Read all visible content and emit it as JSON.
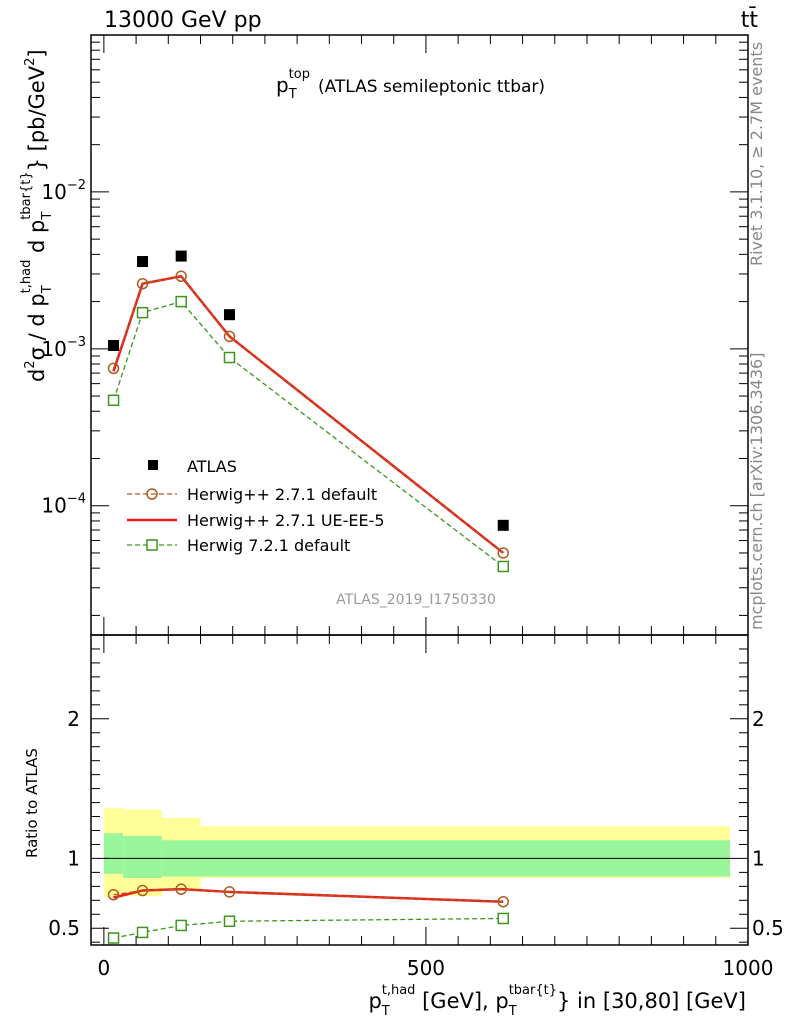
{
  "header": {
    "energy_label": "13000 GeV pp",
    "process_label": "tt̄"
  },
  "side_labels": {
    "rivet": "Rivet 3.1.10, ≥ 2.7M events",
    "mcplots": "mcplots.cern.ch [arXiv:1306.3436]"
  },
  "chart_data": [
    {
      "type": "scatter",
      "title": {
        "main": "p",
        "sub": "T",
        "sup": "top",
        "rest": "(ATLAS semileptonic ttbar)"
      },
      "ylabel": {
        "d2": "d",
        "two": "2",
        "sigma": "σ / d p",
        "T1": "T",
        "thad": "t,had",
        "dp": " d p",
        "T2": "T",
        "tbar": "tbar{t}",
        "brace_unit": "} [pb/GeV",
        "unit_sup": "2",
        "close": "]"
      },
      "yscale": "log",
      "ylim": [
        1.5e-05,
        0.1
      ],
      "xlim": [
        -20,
        1000
      ],
      "yticks": [
        {
          "value": 0.01,
          "base": "10",
          "exp": "−2"
        },
        {
          "value": 0.001,
          "base": "10",
          "exp": "−3"
        },
        {
          "value": 0.0001,
          "base": "10",
          "exp": "−4"
        }
      ],
      "watermark": "ATLAS_2019_I1750330",
      "legend_position": "lower-left",
      "series": [
        {
          "name": "ATLAS",
          "marker": "filled-square",
          "color": "#000000",
          "x": [
            15,
            60,
            120,
            195,
            620
          ],
          "y": [
            0.00105,
            0.0036,
            0.0039,
            0.00165,
            7.5e-05
          ]
        },
        {
          "name": "Herwig++ 2.7.1 default",
          "marker": "open-circle",
          "line": "dashed",
          "color": "#b05a1e",
          "x": [
            15,
            60,
            120,
            195,
            620
          ],
          "y": [
            0.00075,
            0.0026,
            0.0029,
            0.0012,
            5e-05
          ]
        },
        {
          "name": "Herwig++ 2.7.1 UE-EE-5",
          "marker": "none",
          "line": "solid",
          "color": "#ee1c1c",
          "x": [
            15,
            60,
            120,
            195,
            620
          ],
          "y": [
            0.00072,
            0.0026,
            0.0029,
            0.0012,
            5e-05
          ]
        },
        {
          "name": "Herwig 7.2.1 default",
          "marker": "open-square",
          "line": "dashed",
          "color": "#3c961e",
          "x": [
            15,
            60,
            120,
            195,
            620
          ],
          "y": [
            0.00047,
            0.0017,
            0.002,
            0.00088,
            4.1e-05
          ]
        }
      ]
    },
    {
      "type": "scatter",
      "ylabel": "Ratio to ATLAS",
      "xlabel": {
        "p1": "p",
        "T1": "T",
        "thad": "t,had",
        "mid": " [GeV], p",
        "T2": "T",
        "tbar": "tbar{t}",
        "rest": "} in [30,80] [GeV]"
      },
      "yscale": "linear",
      "ylim": [
        0.38,
        2.6
      ],
      "xlim": [
        -20,
        1000
      ],
      "yticks": [
        0.5,
        1,
        2
      ],
      "ytick_labels": [
        "0.5",
        "1",
        "2"
      ],
      "xticks": [
        0,
        500,
        1000
      ],
      "xtick_labels": [
        "0",
        "500",
        "1000"
      ],
      "bands": {
        "bins": [
          [
            0,
            30
          ],
          [
            30,
            90
          ],
          [
            90,
            150
          ],
          [
            150,
            1000
          ]
        ],
        "total": [
          [
            0.72,
            1.36
          ],
          [
            0.73,
            1.35
          ],
          [
            0.78,
            1.29
          ],
          [
            0.86,
            1.23
          ]
        ],
        "stat": [
          [
            0.89,
            1.18
          ],
          [
            0.86,
            1.16
          ],
          [
            0.87,
            1.13
          ],
          [
            0.87,
            1.13
          ]
        ],
        "total_color": "#ffff99",
        "stat_color": "#99f599"
      },
      "series": [
        {
          "name": "Herwig++ 2.7.1 default",
          "marker": "open-circle",
          "line": "dashed",
          "color": "#b05a1e",
          "x": [
            15,
            60,
            120,
            195,
            620
          ],
          "y": [
            0.74,
            0.77,
            0.78,
            0.76,
            0.69
          ]
        },
        {
          "name": "Herwig++ 2.7.1 UE-EE-5",
          "marker": "none",
          "line": "solid",
          "color": "#ee1c1c",
          "x": [
            15,
            60,
            120,
            195,
            620
          ],
          "y": [
            0.72,
            0.77,
            0.78,
            0.76,
            0.69
          ]
        },
        {
          "name": "Herwig 7.2.1 default",
          "marker": "open-square",
          "line": "dashed",
          "color": "#3c961e",
          "x": [
            15,
            60,
            120,
            195,
            620
          ],
          "y": [
            0.43,
            0.47,
            0.52,
            0.55,
            0.57
          ]
        }
      ]
    }
  ]
}
